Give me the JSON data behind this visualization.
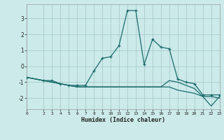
{
  "xlabel": "Humidex (Indice chaleur)",
  "bg_color": "#cceaea",
  "grid_color": "#aacccc",
  "line_color": "#1a6b6b",
  "xlim": [
    0,
    23
  ],
  "ylim": [
    -2.7,
    3.9
  ],
  "xticks": [
    0,
    2,
    3,
    4,
    5,
    6,
    7,
    8,
    9,
    10,
    11,
    12,
    13,
    14,
    15,
    16,
    17,
    18,
    19,
    20,
    21,
    22,
    23
  ],
  "yticks": [
    -2,
    -1,
    0,
    1,
    2,
    3
  ],
  "series_main": {
    "x": [
      0,
      2,
      3,
      4,
      5,
      6,
      7,
      8,
      9,
      10,
      11,
      12,
      13,
      14,
      15,
      16,
      17,
      18,
      19,
      20,
      21,
      22,
      23
    ],
    "y": [
      -0.7,
      -0.9,
      -0.9,
      -1.1,
      -1.2,
      -1.2,
      -1.2,
      -0.3,
      0.5,
      0.6,
      1.3,
      3.5,
      3.5,
      0.1,
      1.7,
      1.2,
      1.1,
      -0.8,
      -1.0,
      -1.1,
      -1.8,
      -1.8,
      -1.8
    ]
  },
  "series_lower1": {
    "x": [
      0,
      2,
      3,
      4,
      5,
      6,
      7,
      8,
      9,
      10,
      11,
      12,
      13,
      14,
      15,
      16,
      17,
      18,
      19,
      20,
      21,
      22,
      23
    ],
    "y": [
      -0.7,
      -0.9,
      -1.0,
      -1.1,
      -1.2,
      -1.3,
      -1.3,
      -1.3,
      -1.3,
      -1.3,
      -1.3,
      -1.3,
      -1.3,
      -1.3,
      -1.3,
      -1.3,
      -1.3,
      -1.5,
      -1.6,
      -1.7,
      -1.9,
      -2.5,
      -1.9
    ]
  },
  "series_lower2": {
    "x": [
      0,
      2,
      3,
      4,
      5,
      6,
      7,
      8,
      9,
      10,
      11,
      12,
      13,
      14,
      15,
      16,
      17,
      18,
      19,
      20,
      21,
      22,
      23
    ],
    "y": [
      -0.7,
      -0.9,
      -1.0,
      -1.1,
      -1.2,
      -1.3,
      -1.3,
      -1.3,
      -1.3,
      -1.3,
      -1.3,
      -1.3,
      -1.3,
      -1.3,
      -1.3,
      -1.3,
      -0.9,
      -1.0,
      -1.2,
      -1.4,
      -1.9,
      -1.9,
      -2.0
    ]
  }
}
